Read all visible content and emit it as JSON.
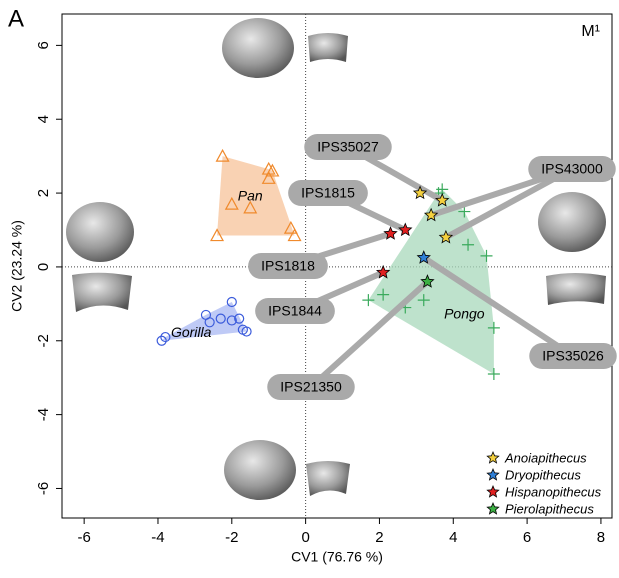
{
  "chart_data": {
    "type": "scatter",
    "panel_label": "A",
    "tooth_label": "M¹",
    "x_label": "CV1 (76.76 %)",
    "y_label": "CV2 (23.24 %)",
    "xlim": [
      -6.6,
      8.3
    ],
    "ylim": [
      -6.8,
      6.85
    ],
    "xticks": [
      -6,
      -4,
      -2,
      0,
      2,
      4,
      6,
      8
    ],
    "yticks": [
      -6,
      -4,
      -2,
      0,
      2,
      4,
      6
    ],
    "groups": [
      {
        "name": "Pan",
        "color": "#f08a2c",
        "hull_color": "#f7c39a",
        "marker": "triangle",
        "x": [
          -2.25,
          -1.0,
          -0.9,
          -1.0,
          -2.0,
          -1.5,
          -2.4,
          -0.4,
          -0.3
        ],
        "y": [
          3.0,
          2.65,
          2.6,
          2.4,
          1.7,
          1.6,
          0.85,
          1.05,
          0.85
        ]
      },
      {
        "name": "Gorilla",
        "color": "#3b5bdb",
        "hull_color": "#a9b8f3",
        "marker": "circle",
        "x": [
          -3.9,
          -3.8,
          -2.0,
          -2.7,
          -2.6,
          -2.3,
          -2.0,
          -1.8,
          -1.6,
          -1.7
        ],
        "y": [
          -2.0,
          -1.9,
          -0.95,
          -1.3,
          -1.5,
          -1.4,
          -1.45,
          -1.4,
          -1.75,
          -1.7
        ]
      },
      {
        "name": "Pongo",
        "color": "#3aaa5c",
        "hull_color": "#a8d8bb",
        "marker": "plus",
        "x": [
          3.6,
          4.3,
          4.4,
          4.9,
          2.1,
          1.7,
          2.7,
          3.2,
          5.1,
          5.1,
          3.7
        ],
        "y": [
          2.0,
          1.5,
          0.6,
          0.3,
          -0.75,
          -0.9,
          -1.1,
          -0.9,
          -1.65,
          -2.9,
          2.1
        ]
      }
    ],
    "series": [
      {
        "name": "Anoiapithecus",
        "color": "#f4d03f",
        "x": [
          3.1,
          3.7,
          3.4,
          3.8
        ],
        "y": [
          2.0,
          1.8,
          1.4,
          0.8
        ]
      },
      {
        "name": "Dryopithecus",
        "color": "#2f7fd6",
        "x": [
          3.2
        ],
        "y": [
          0.25
        ]
      },
      {
        "name": "Hispanopithecus",
        "color": "#e02020",
        "x": [
          2.3,
          2.7,
          2.1
        ],
        "y": [
          0.9,
          1.0,
          -0.15
        ]
      },
      {
        "name": "Pierolapithecus",
        "color": "#3cb043",
        "x": [
          3.3
        ],
        "y": [
          -0.4
        ]
      }
    ],
    "annotations": [
      "IPS35027",
      "IPS43000",
      "IPS1815",
      "IPS1818",
      "IPS1844",
      "IPS35026",
      "IPS21350"
    ]
  }
}
